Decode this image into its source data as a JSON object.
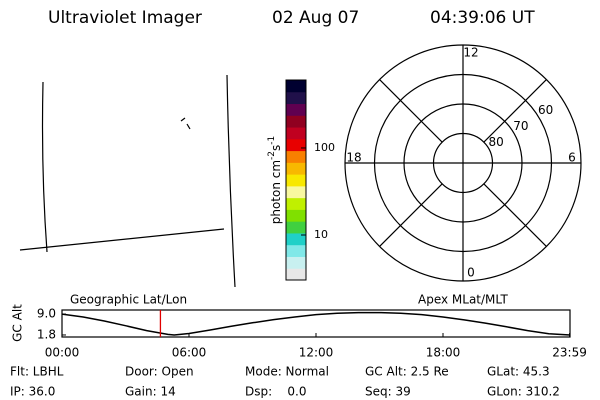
{
  "header": {
    "instrument": "Ultraviolet Imager",
    "date": "02 Aug 07",
    "time": "04:39:06 UT"
  },
  "chart_data": [
    {
      "type": "colorbar",
      "label": {
        "text": "photon cm",
        "exp1": "-2",
        "unit2": "s",
        "exp2": "-1"
      },
      "log_scale": true,
      "ylim": [
        3.04,
        604
      ],
      "yticks": [
        10,
        100
      ],
      "colors": [
        "#e8e8e8",
        "#c8f0f0",
        "#80e8e8",
        "#20d0c8",
        "#40d040",
        "#80e000",
        "#c0f000",
        "#f8f8a0",
        "#f8e800",
        "#f8b800",
        "#f88000",
        "#e80000",
        "#c00020",
        "#900020",
        "#600050",
        "#20104a",
        "#000030"
      ]
    },
    {
      "type": "polar",
      "rlim": [
        90,
        50
      ],
      "rticks": [
        80,
        70,
        60
      ],
      "thetaticks": [
        12,
        18,
        0,
        6
      ]
    },
    {
      "type": "line",
      "ylabel": "GC Alt",
      "left_label": "Geographic Lat/Lon",
      "right_label": "Apex MLat/MLT",
      "x": [
        0,
        1,
        2,
        3,
        4,
        5,
        5.3,
        6,
        7,
        8,
        9,
        10,
        11,
        12,
        13,
        14,
        15,
        16,
        17,
        18,
        19,
        20,
        21,
        22,
        23,
        24
      ],
      "values": [
        9.0,
        8.0,
        6.6,
        5.0,
        3.3,
        2.0,
        1.8,
        2.3,
        3.5,
        4.8,
        6.0,
        7.1,
        8.0,
        8.8,
        9.3,
        9.5,
        9.5,
        9.3,
        8.8,
        8.0,
        7.0,
        5.9,
        4.6,
        3.3,
        2.2,
        1.8
      ],
      "color": "#000000",
      "current_time": 4.65,
      "current_color": "#e00000",
      "xlim": [
        0,
        24
      ],
      "ylim": [
        1.1,
        10.4
      ],
      "xticks": [
        {
          "value": 0,
          "label": "00:00"
        },
        {
          "value": 6,
          "label": "06:00"
        },
        {
          "value": 12,
          "label": "12:00"
        },
        {
          "value": 18,
          "label": "18:00"
        },
        {
          "value": 23.98,
          "label": "23:59"
        }
      ],
      "yticks": [
        {
          "value": 9.0,
          "label": "9.0"
        },
        1.8
      ]
    }
  ],
  "info": {
    "rows": [
      [
        "Flt: LBHL",
        "Door: Open",
        "Mode: Normal",
        "GC Alt: 2.5 Re",
        "GLat: 45.3"
      ],
      [
        "IP: 36.0",
        "Gain: 14",
        "Dsp:    0.0",
        "Seq: 39",
        "GLon: 310.2"
      ]
    ]
  }
}
